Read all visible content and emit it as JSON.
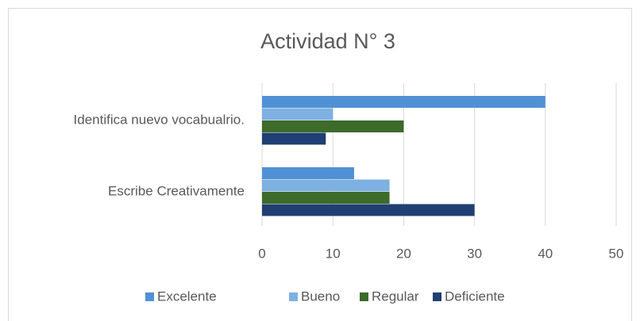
{
  "chart_data": {
    "type": "hbar",
    "title": "Actividad N° 3",
    "categories": [
      "Identifica nuevo vocabualrio.",
      "Escribe Creativamente"
    ],
    "series": [
      {
        "name": "Excelente",
        "color": "#5091d5",
        "values": [
          40,
          13
        ]
      },
      {
        "name": "Bueno",
        "color": "#7eb0e2",
        "values": [
          10,
          18
        ]
      },
      {
        "name": "Regular",
        "color": "#3d6b2a",
        "values": [
          20,
          18
        ]
      },
      {
        "name": "Deficiente",
        "color": "#203f73",
        "values": [
          9,
          30
        ]
      }
    ],
    "xlim": [
      0,
      50
    ],
    "xticks": [
      0,
      10,
      20,
      30,
      40,
      50
    ],
    "grid": true,
    "legend": "bottom"
  }
}
